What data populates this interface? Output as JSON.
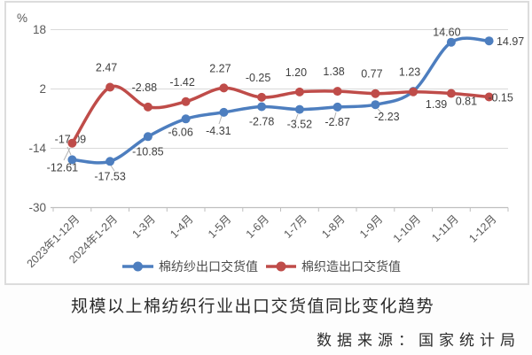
{
  "chart_data": {
    "type": "line",
    "title": "规模以上棉纺织行业出口交货值同比变化趋势",
    "source": "数据来源：国家统计局",
    "y_unit": "%",
    "ylim": [
      -30,
      18
    ],
    "y_ticks": [
      18,
      2,
      -14,
      -30
    ],
    "grid": true,
    "legend_position": "bottom",
    "categories": [
      "2023年1-12月",
      "2024年1-2月",
      "1-3月",
      "1-4月",
      "1-5月",
      "1-6月",
      "1-7月",
      "1-8月",
      "1-9月",
      "1-10月",
      "1-11月",
      "1-12月"
    ],
    "series": [
      {
        "name": "棉纺纱出口交货值",
        "color": "#4d7ebf",
        "values": [
          -17.09,
          -17.53,
          -10.85,
          -6.06,
          -4.31,
          -2.78,
          -3.52,
          -2.87,
          -2.23,
          1.39,
          14.6,
          14.97
        ]
      },
      {
        "name": "棉织造出口交货值",
        "color": "#bf4c49",
        "values": [
          -12.61,
          2.47,
          -2.88,
          -1.42,
          2.27,
          -0.25,
          1.2,
          1.38,
          0.77,
          1.23,
          0.81,
          -0.15
        ]
      }
    ]
  },
  "style": {
    "gridline_color": "#d9d9d9",
    "axis_color": "#bfbfbf",
    "axis_text_color": "#595959",
    "data_label_color": "#3f3f3f",
    "legend_text_color": "#4a4a4a",
    "leader_line_color": "#b3b3b3"
  }
}
